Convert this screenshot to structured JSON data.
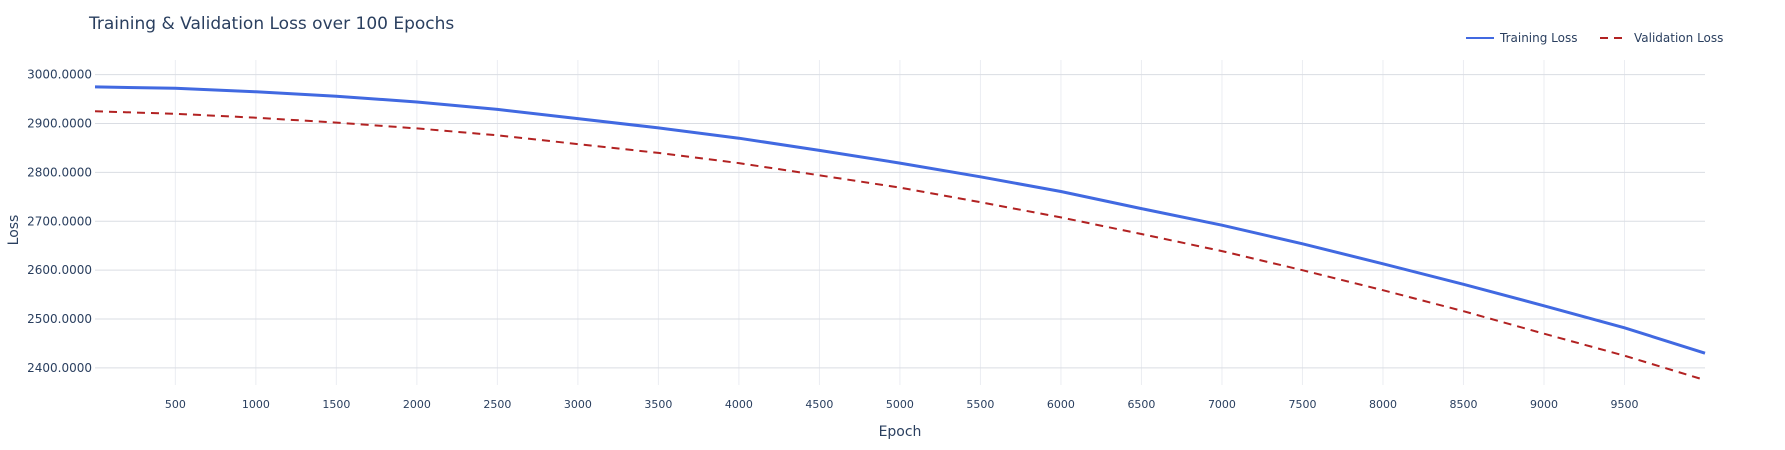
{
  "chart_data": {
    "type": "line",
    "title": "Training & Validation Loss over 100 Epochs",
    "xlabel": "Epoch",
    "ylabel": "Loss",
    "xlim": [
      1,
      10000
    ],
    "ylim": [
      2365,
      3030
    ],
    "xticks": [
      500,
      1000,
      1500,
      2000,
      2500,
      3000,
      3500,
      4000,
      4500,
      5000,
      5500,
      6000,
      6500,
      7000,
      7500,
      8000,
      8500,
      9000,
      9500
    ],
    "xtick_labels": [
      "500",
      "1000",
      "1500",
      "2000",
      "2500",
      "3000",
      "3500",
      "4000",
      "4500",
      "5000",
      "5500",
      "6000",
      "6500",
      "7000",
      "7500",
      "8000",
      "8500",
      "9000",
      "9500"
    ],
    "yticks": [
      2400,
      2500,
      2600,
      2700,
      2800,
      2900,
      3000
    ],
    "ytick_labels": [
      "2400.0000",
      "2500.0000",
      "2600.0000",
      "2700.0000",
      "2800.0000",
      "2900.0000",
      "3000.0000"
    ],
    "grid": true,
    "legend_position": "top-right",
    "series": [
      {
        "name": "Training Loss",
        "color": "#4169e1",
        "dash": "solid",
        "x": [
          1,
          500,
          1000,
          1500,
          2000,
          2500,
          3000,
          3500,
          4000,
          4500,
          5000,
          5500,
          6000,
          6500,
          7000,
          7500,
          8000,
          8500,
          9000,
          9500,
          10000
        ],
        "y": [
          2975,
          2972,
          2965,
          2956,
          2944,
          2929,
          2910,
          2891,
          2870,
          2845,
          2819,
          2791,
          2761,
          2726,
          2692,
          2654,
          2613,
          2571,
          2527,
          2482,
          2430
        ]
      },
      {
        "name": "Validation Loss",
        "color": "#b22222",
        "dash": "dashed",
        "x": [
          1,
          500,
          1000,
          1500,
          2000,
          2500,
          3000,
          3500,
          4000,
          4500,
          5000,
          5500,
          6000,
          6500,
          7000,
          7500,
          8000,
          8500,
          9000,
          9500,
          10000
        ],
        "y": [
          2925,
          2920,
          2912,
          2902,
          2890,
          2876,
          2858,
          2840,
          2819,
          2794,
          2769,
          2739,
          2708,
          2674,
          2639,
          2600,
          2559,
          2516,
          2470,
          2425,
          2375
        ]
      }
    ]
  }
}
